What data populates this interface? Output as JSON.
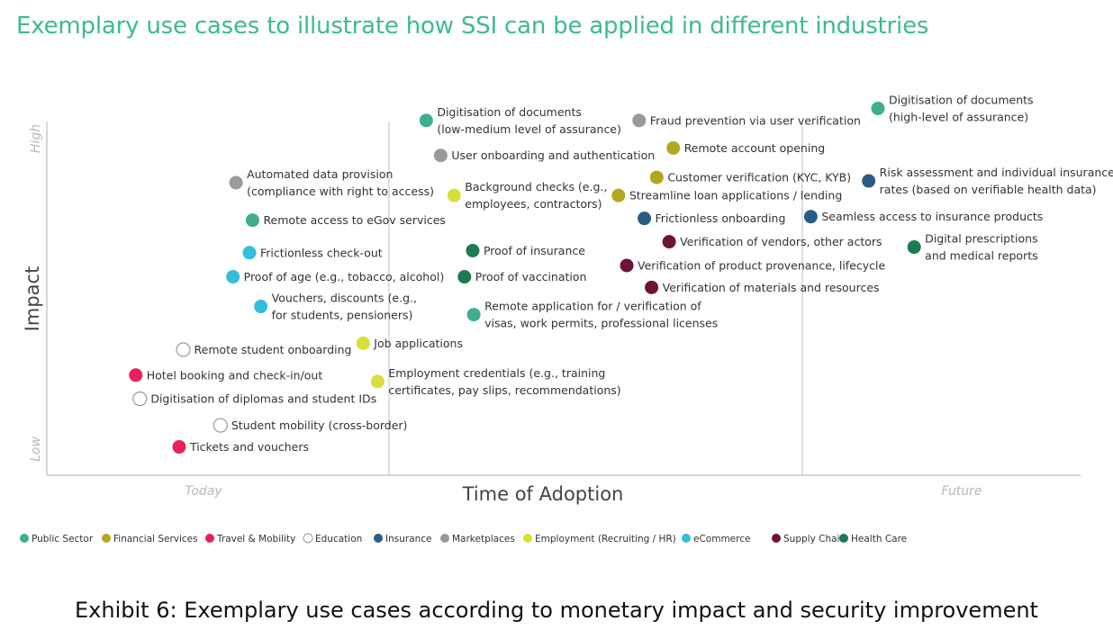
{
  "title": "Exemplary use cases to illustrate how SSI can be applied in different industries",
  "caption": "Exhibit 6: Exemplary use cases according to monetary impact and security improvement",
  "chart_data": {
    "type": "scatter",
    "xlabel": "Time of Adoption",
    "ylabel": "Impact",
    "x_ticks": [
      "Today",
      "Future"
    ],
    "y_ticks": [
      "Low",
      "High"
    ],
    "xlim": [
      0,
      100
    ],
    "ylim": [
      0,
      100
    ],
    "categories": [
      {
        "name": "Public Sector",
        "color": "#3fae8f"
      },
      {
        "name": "Financial Services",
        "color": "#b3a81d"
      },
      {
        "name": "Travel & Mobility",
        "color": "#e5225a"
      },
      {
        "name": "Education",
        "color": "#ffffff"
      },
      {
        "name": "Insurance",
        "color": "#2a5d86"
      },
      {
        "name": "Marketplaces",
        "color": "#9a9a9a"
      },
      {
        "name": "Employment (Recruiting / HR)",
        "color": "#d9df3a"
      },
      {
        "name": "eCommerce",
        "color": "#34bedb"
      },
      {
        "name": "Supply Chain",
        "color": "#6b1437"
      },
      {
        "name": "Health Care",
        "color": "#1d7a52"
      }
    ],
    "points": [
      {
        "lines": [
          "Digitisation of documents",
          "(low-medium level of assurance)"
        ],
        "category": "Public Sector",
        "x": 36.7,
        "y": 100.3
      },
      {
        "lines": [
          "Fraud prevention via user verification"
        ],
        "category": "Marketplaces",
        "x": 57.3,
        "y": 100.3
      },
      {
        "lines": [
          "Digitisation of documents",
          "(high-level of assurance)"
        ],
        "category": "Public Sector",
        "x": 80.4,
        "y": 103.7
      },
      {
        "lines": [
          "Remote account opening"
        ],
        "category": "Financial Services",
        "x": 60.6,
        "y": 92.5
      },
      {
        "lines": [
          "User onboarding and authentication"
        ],
        "category": "Marketplaces",
        "x": 38.1,
        "y": 90.4
      },
      {
        "lines": [
          "Customer verification (KYC, KYB)"
        ],
        "category": "Financial Services",
        "x": 59.0,
        "y": 84.2
      },
      {
        "lines": [
          "Risk assessment and individual insurance",
          "rates (based on verifiable health data)"
        ],
        "category": "Insurance",
        "x": 79.5,
        "y": 83.2
      },
      {
        "lines": [
          "Automated data provision",
          "(compliance with right to access)"
        ],
        "category": "Marketplaces",
        "x": 18.3,
        "y": 82.7
      },
      {
        "lines": [
          "Background checks (e.g.,",
          "employees, contractors)"
        ],
        "category": "Employment (Recruiting / HR)",
        "x": 39.4,
        "y": 79.1
      },
      {
        "lines": [
          "Streamline loan applications / lending"
        ],
        "category": "Financial Services",
        "x": 55.3,
        "y": 79.1
      },
      {
        "lines": [
          "Frictionless onboarding"
        ],
        "category": "Insurance",
        "x": 57.8,
        "y": 72.6
      },
      {
        "lines": [
          "Seamless access to insurance products"
        ],
        "category": "Insurance",
        "x": 73.9,
        "y": 73.1
      },
      {
        "lines": [
          "Remote access to eGov services"
        ],
        "category": "Public Sector",
        "x": 19.9,
        "y": 72.1
      },
      {
        "lines": [
          "Verification of vendors, other actors"
        ],
        "category": "Supply Chain",
        "x": 60.2,
        "y": 66.0
      },
      {
        "lines": [
          "Digital prescriptions",
          "and medical reports"
        ],
        "category": "Health Care",
        "x": 83.9,
        "y": 64.5
      },
      {
        "lines": [
          "Frictionless check-out"
        ],
        "category": "eCommerce",
        "x": 19.6,
        "y": 62.9
      },
      {
        "lines": [
          "Proof of insurance"
        ],
        "category": "Health Care",
        "x": 41.2,
        "y": 63.5
      },
      {
        "lines": [
          "Verification of product provenance, lifecycle"
        ],
        "category": "Supply Chain",
        "x": 56.1,
        "y": 59.3
      },
      {
        "lines": [
          "Proof of age (e.g., tobacco, alcohol)"
        ],
        "category": "eCommerce",
        "x": 18.0,
        "y": 56.1
      },
      {
        "lines": [
          "Proof of vaccination"
        ],
        "category": "Health Care",
        "x": 40.4,
        "y": 56.1
      },
      {
        "lines": [
          "Verification of materials and resources"
        ],
        "category": "Supply Chain",
        "x": 58.5,
        "y": 53.1
      },
      {
        "lines": [
          "Vouchers, discounts (e.g.,",
          "for students, pensioners)"
        ],
        "category": "eCommerce",
        "x": 20.7,
        "y": 47.7
      },
      {
        "lines": [
          "Remote application for / verification of",
          "visas, work permits, professional licenses"
        ],
        "category": "Public Sector",
        "x": 41.3,
        "y": 45.4
      },
      {
        "lines": [
          "Job applications"
        ],
        "category": "Employment (Recruiting / HR)",
        "x": 30.6,
        "y": 37.3
      },
      {
        "lines": [
          "Remote student onboarding"
        ],
        "category": "Education",
        "x": 13.2,
        "y": 35.5
      },
      {
        "lines": [
          "Hotel booking and check-in/out"
        ],
        "category": "Travel & Mobility",
        "x": 8.6,
        "y": 28.3
      },
      {
        "lines": [
          "Employment credentials (e.g., training",
          "certificates, pay slips, recommendations)"
        ],
        "category": "Employment (Recruiting / HR)",
        "x": 32.0,
        "y": 26.5
      },
      {
        "lines": [
          "Digitisation of diplomas and student IDs"
        ],
        "category": "Education",
        "x": 9.0,
        "y": 21.6
      },
      {
        "lines": [
          "Student mobility (cross-border)"
        ],
        "category": "Education",
        "x": 16.8,
        "y": 14.1
      },
      {
        "lines": [
          "Tickets and vouchers"
        ],
        "category": "Travel & Mobility",
        "x": 12.8,
        "y": 8.0
      }
    ]
  }
}
